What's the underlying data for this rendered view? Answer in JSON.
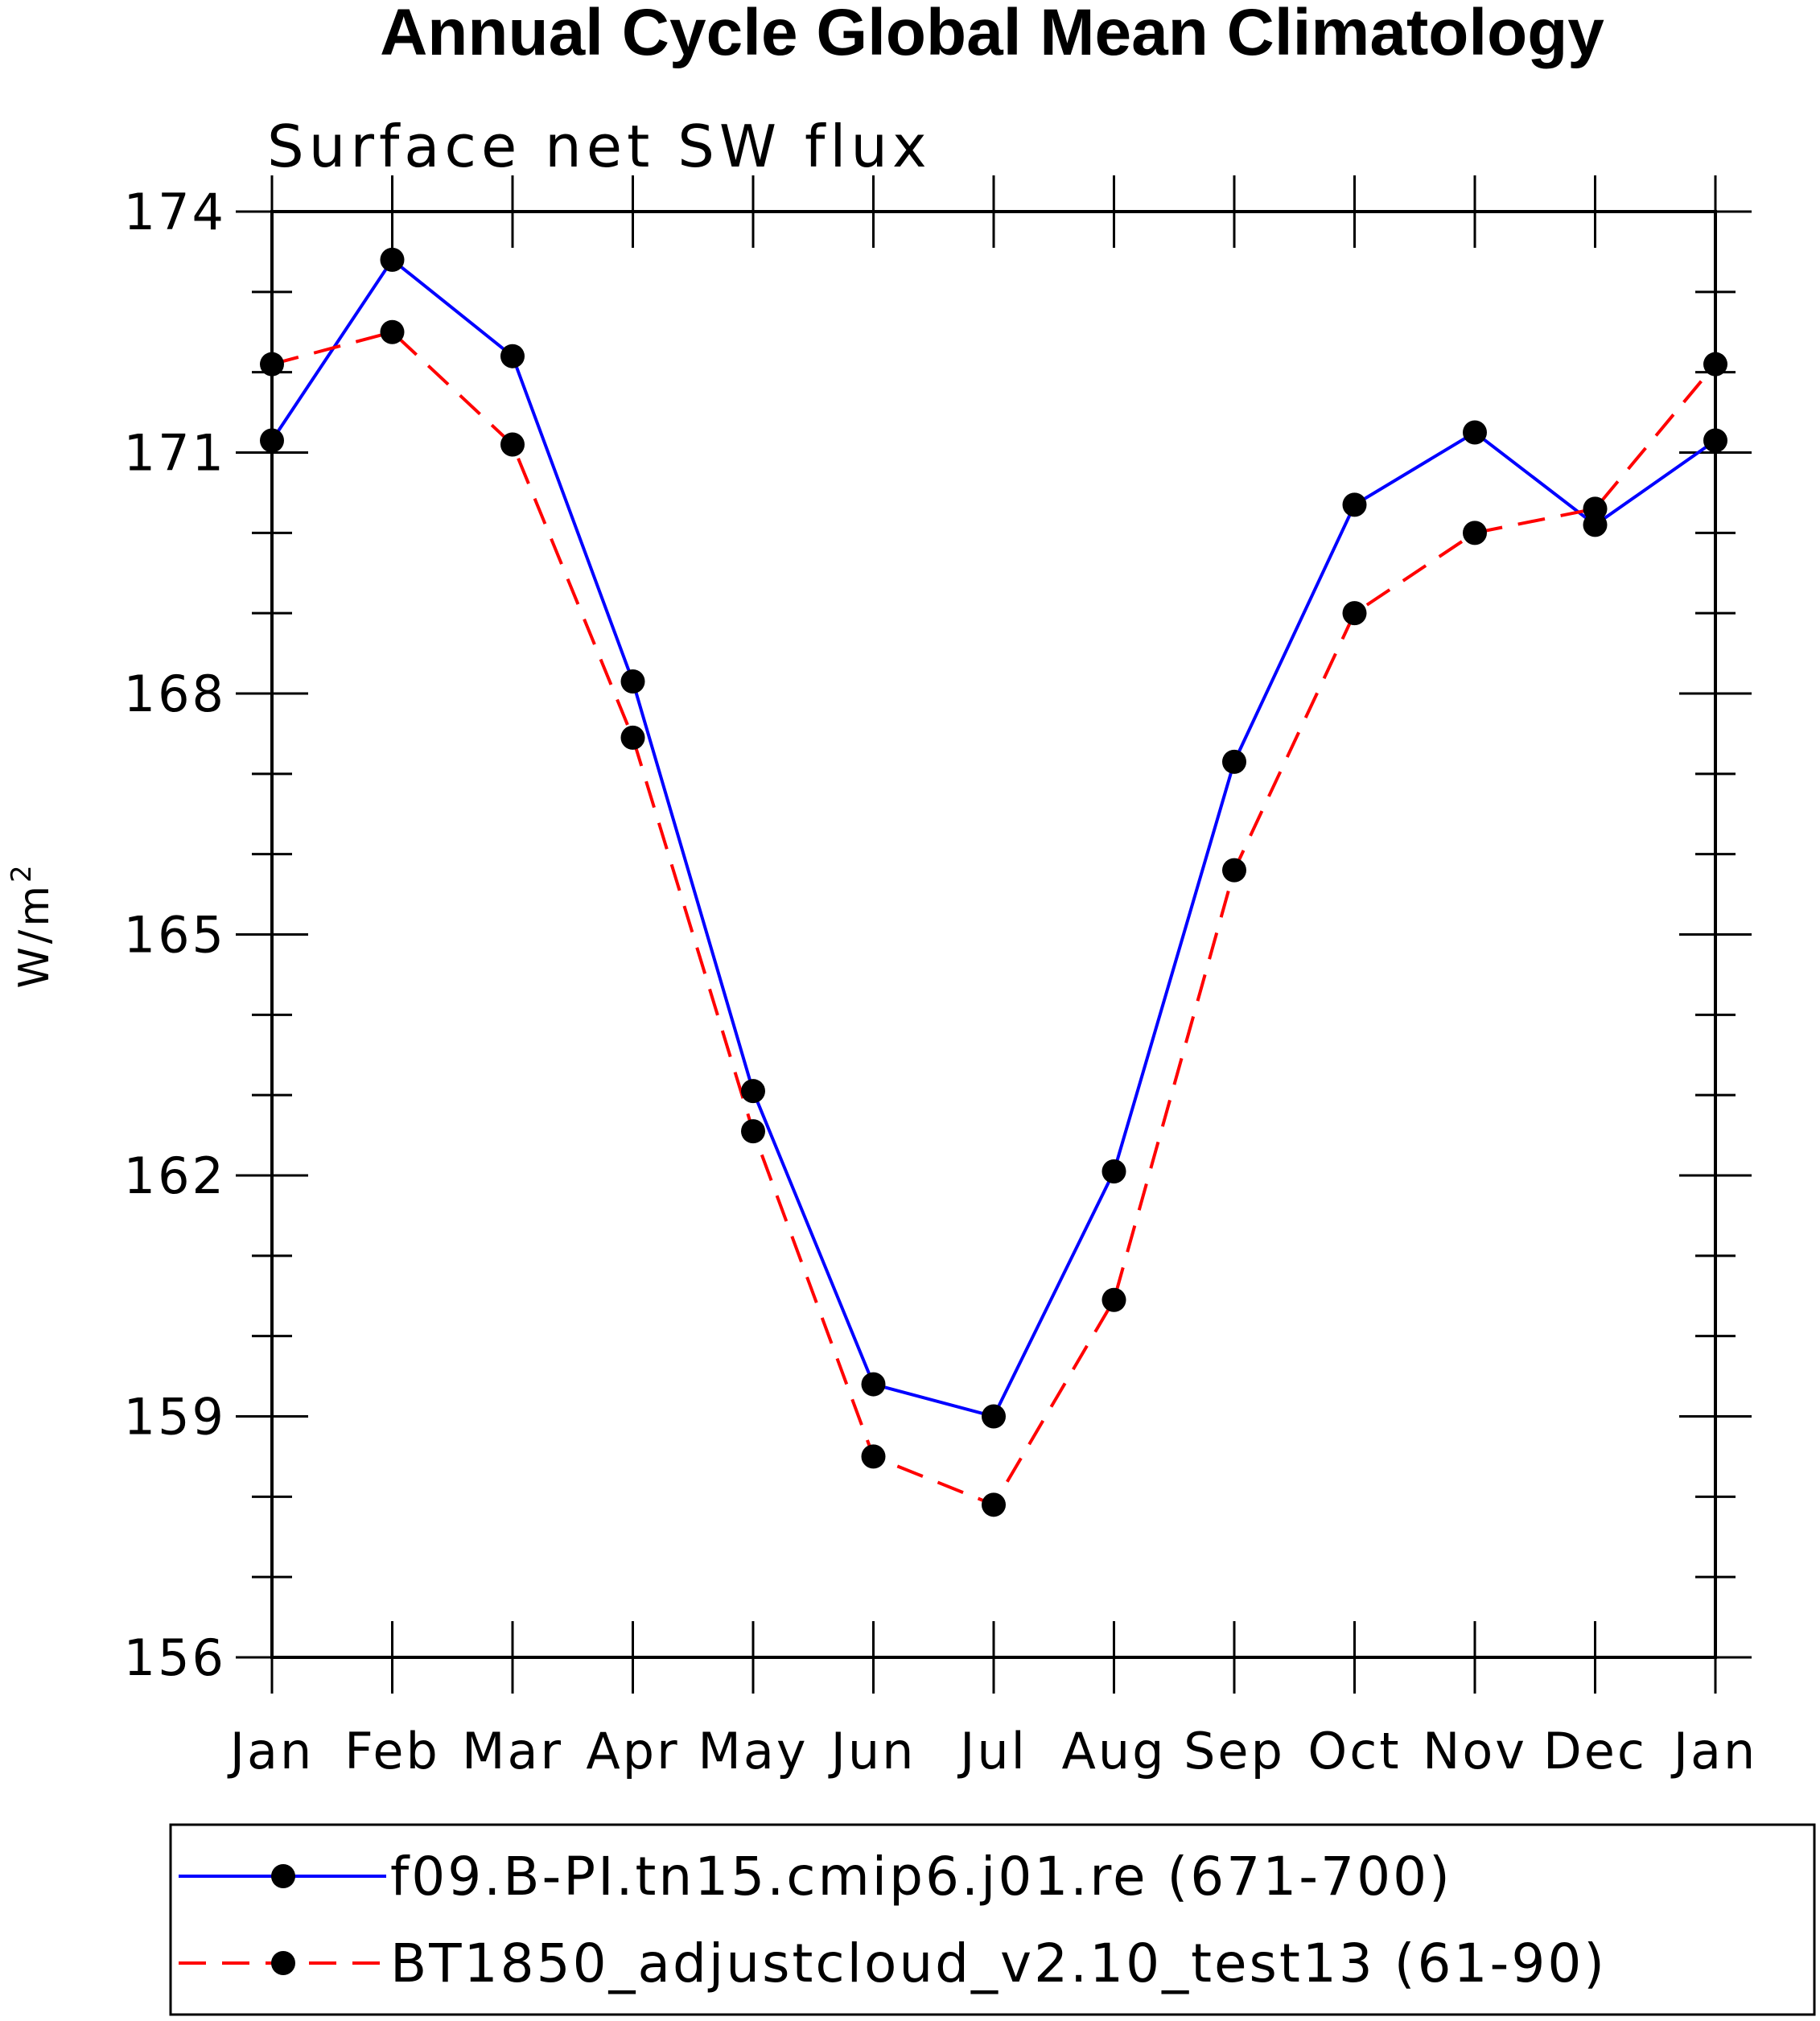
{
  "chart_data": {
    "type": "line",
    "title": "Annual Cycle Global Mean Climatology",
    "subtitle": "Surface net SW flux",
    "xlabel": "",
    "ylabel": "W/m",
    "ylabel_superscript": "2",
    "categories": [
      "Jan",
      "Feb",
      "Mar",
      "Apr",
      "May",
      "Jun",
      "Jul",
      "Aug",
      "Sep",
      "Oct",
      "Nov",
      "Dec",
      "Jan"
    ],
    "ylim": [
      156,
      174
    ],
    "yticks": [
      156,
      159,
      162,
      165,
      168,
      171,
      174
    ],
    "yminor_step": 1,
    "grid": false,
    "legend_position": "bottom",
    "series": [
      {
        "name": "f09.B-PI.tn15.cmip6.j01.re (671-700)",
        "color": "#0000ff",
        "dash": "solid",
        "marker": "filled-circle",
        "values": [
          171.15,
          173.4,
          172.2,
          168.15,
          163.05,
          159.4,
          159.0,
          162.05,
          167.15,
          170.35,
          171.25,
          170.1,
          171.15
        ]
      },
      {
        "name": "BT1850_adjustcloud_v2.10_test13 (61-90)",
        "color": "#ff0000",
        "dash": "dashed",
        "marker": "filled-circle",
        "values": [
          172.1,
          172.5,
          171.1,
          167.45,
          162.55,
          158.5,
          157.9,
          160.45,
          165.8,
          169.0,
          170.0,
          170.3,
          172.1
        ]
      }
    ]
  }
}
